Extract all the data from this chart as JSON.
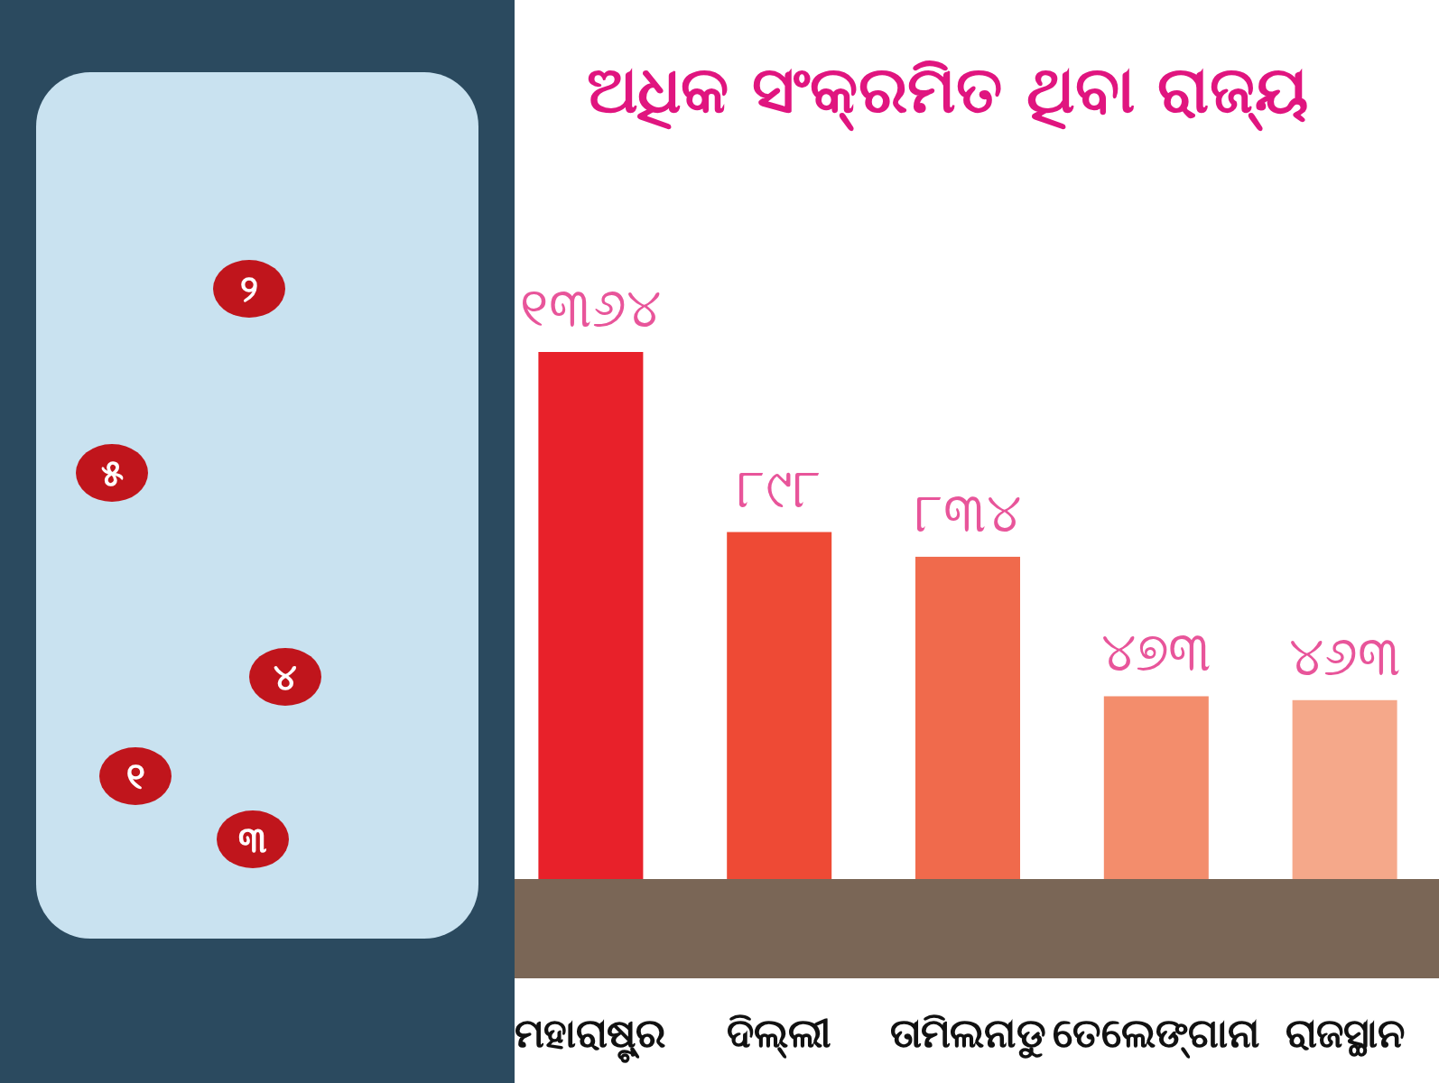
{
  "chart_data": {
    "type": "bar",
    "title": "ଅଧିକ ସଂକ୍ରମିତ ଥିବା ରାଜ୍ୟ",
    "categories": [
      "ମହାରାଷ୍ଟ୍ର",
      "ଦିଲ୍ଲୀ",
      "ତାମିଲନାଡୁ",
      "ତେଲେଙ୍ଗାନା",
      "ରାଜସ୍ଥାନ"
    ],
    "values": [
      1364,
      898,
      834,
      473,
      463
    ],
    "colors": [
      "#e8212a",
      "#ee4a35",
      "#f06a4c",
      "#f38d6c",
      "#f5a88a"
    ],
    "value_labels": [
      "୧୩୬୪",
      "୮୯୮",
      "୮୩୪",
      "୪୭୩",
      "୪୬୩"
    ],
    "annotations": [
      "୧",
      "୨",
      "୩",
      "୪",
      "୫"
    ]
  }
}
